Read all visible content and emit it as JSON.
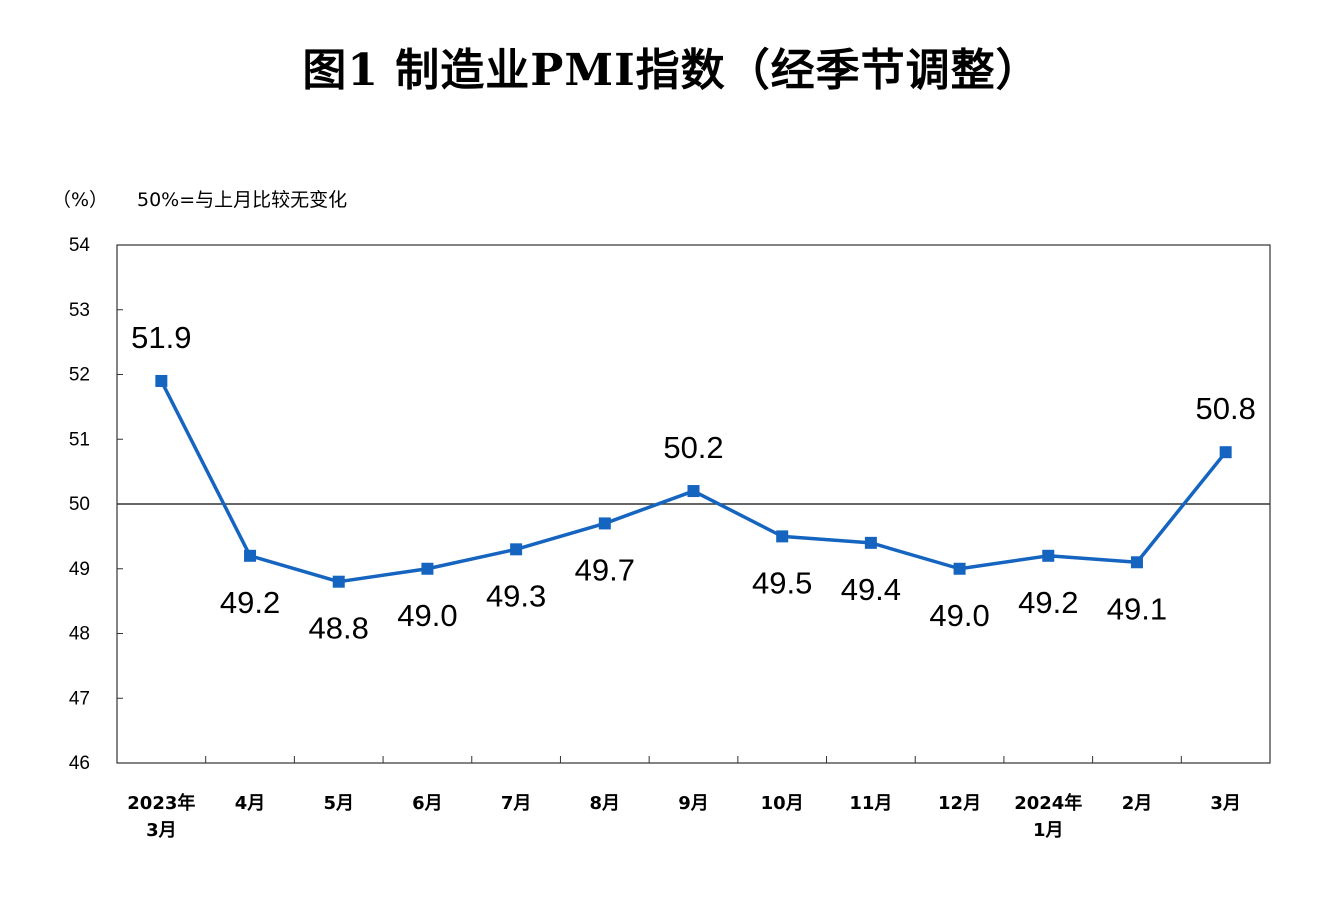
{
  "chart_data": {
    "type": "line",
    "title": "图1 制造业PMI指数（经季节调整）",
    "unit_label": "（%）",
    "note": "50%=与上月比较无变化",
    "categories": [
      [
        "2023年",
        "3月"
      ],
      [
        "4月"
      ],
      [
        "5月"
      ],
      [
        "6月"
      ],
      [
        "7月"
      ],
      [
        "8月"
      ],
      [
        "9月"
      ],
      [
        "10月"
      ],
      [
        "11月"
      ],
      [
        "12月"
      ],
      [
        "2024年",
        "1月"
      ],
      [
        "2月"
      ],
      [
        "3月"
      ]
    ],
    "series": [
      {
        "values": [
          51.9,
          49.2,
          48.8,
          49.0,
          49.3,
          49.7,
          50.2,
          49.5,
          49.4,
          49.0,
          49.2,
          49.1,
          50.8
        ],
        "color": "#1565c0"
      }
    ],
    "data_labels": [
      "51.9",
      "49.2",
      "48.8",
      "49.0",
      "49.3",
      "49.7",
      "50.2",
      "49.5",
      "49.4",
      "49.0",
      "49.2",
      "49.1",
      "50.8"
    ],
    "label_side": [
      "above",
      "below",
      "below",
      "below",
      "below",
      "below",
      "above",
      "below",
      "below",
      "below",
      "below",
      "below",
      "above"
    ],
    "ylim": [
      46,
      54
    ],
    "yticks": [
      46,
      47,
      48,
      49,
      50,
      51,
      52,
      53,
      54
    ],
    "reference_line": 50,
    "grid": false,
    "legend": "none"
  }
}
